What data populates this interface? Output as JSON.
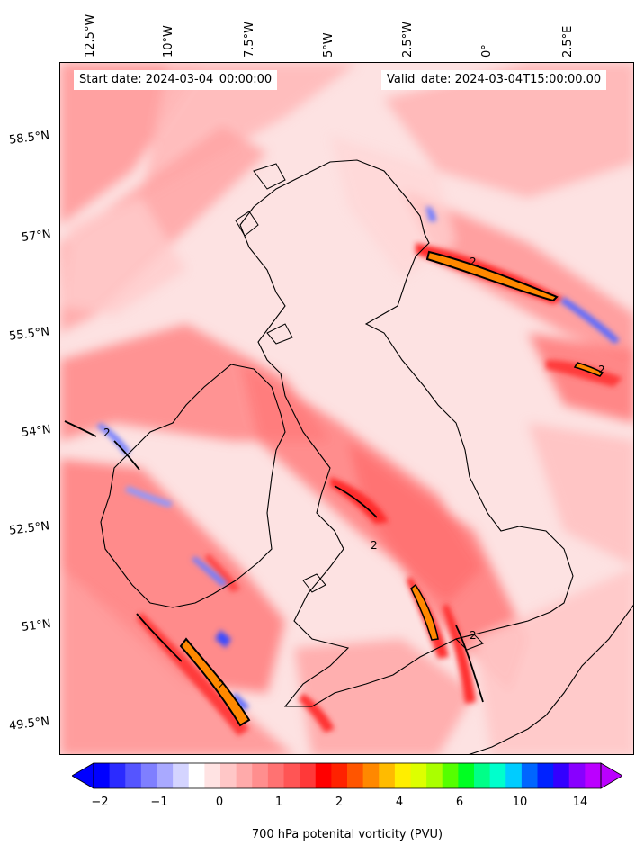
{
  "header": {
    "start_date": "Start date: 2024-03-04_00:00:00",
    "valid_date": "Valid_date: 2024-03-04T15:00:00.00"
  },
  "axes": {
    "longitude_labels": [
      "12.5°W",
      "10°W",
      "7.5°W",
      "5°W",
      "2.5°W",
      "0°",
      "2.5°E"
    ],
    "latitude_labels": [
      "58.5°N",
      "57°N",
      "55.5°N",
      "54°N",
      "52.5°N",
      "51°N",
      "49.5°N"
    ]
  },
  "colorbar": {
    "label": "700 hPa potenital vorticity (PVU)",
    "tick_labels": [
      "−2",
      "−1",
      "0",
      "1",
      "2",
      "4",
      "6",
      "10",
      "14"
    ],
    "colors": [
      "#0000ff",
      "#2b2bff",
      "#5555ff",
      "#7f7fff",
      "#a9a9ff",
      "#d4d4ff",
      "#ffffff",
      "#ffe3e3",
      "#ffc7c7",
      "#ffaaaa",
      "#ff8e8e",
      "#ff7272",
      "#ff5555",
      "#ff3939",
      "#ff0000",
      "#ff2200",
      "#ff5500",
      "#ff8800",
      "#ffbb00",
      "#ffee00",
      "#ddff00",
      "#aaff00",
      "#55ff00",
      "#00ff22",
      "#00ff88",
      "#00ffcc",
      "#00ccff",
      "#0066ff",
      "#0022ff",
      "#3300ff",
      "#8800ff",
      "#bb00ff"
    ]
  },
  "legend_colors": {
    "background_pink": "#fde2e2",
    "light_red": "#ffb3b3",
    "red": "#ff6b6b",
    "deep_red": "#ff2a2a",
    "orange": "#ff8800",
    "blue": "#5a6bff",
    "coastline": "#000000"
  },
  "contour_label": "2"
}
